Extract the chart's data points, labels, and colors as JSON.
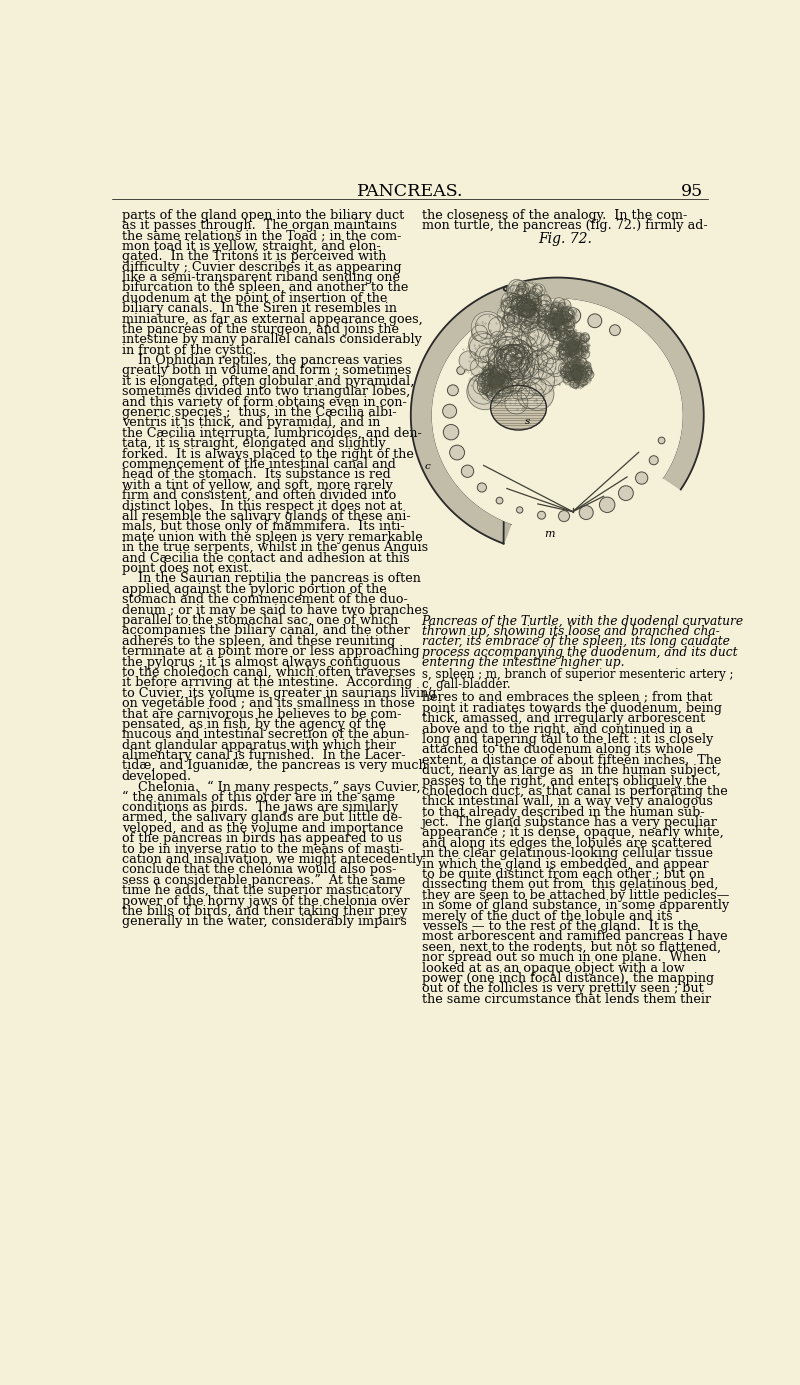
{
  "background_color": "#f5f0d8",
  "page_title": "PANCREAS.",
  "page_number": "95",
  "title_fontsize": 12.5,
  "body_fontsize": 9.2,
  "caption_fontsize": 8.8,
  "fig_label": "Fig. 72.",
  "fig_label_fontsize": 10,
  "caption_italic": "Pancreas of the Turtle, with the duodenal curvature\nthrown up, showing its loose and branched cha-\nracter, its embrace of the spleen, its long caudate\nprocess accompanying the duodenum, and its duct\nentering the intestine higher up.",
  "caption_normal_1": "s, spleen ; m, branch of superior mesenteric artery ;",
  "caption_normal_2": "c, gall-bladder.",
  "left_col_lines": [
    "parts of the gland open into the biliary duct",
    "as it passes through.  The organ maintains",
    "the same relations in the Toad ; in the com-",
    "mon toad it is yellow, straight, and elon-",
    "gated.  In the Tritons it is perceived with",
    "difficulty ; Cuvier describes it as appearing",
    "like a semi-transparent riband sending one",
    "bifurcation to the spleen, and another to the",
    "duodenum at the point of insertion of the",
    "biliary canals.  In the Siren it resembles in",
    "miniature, as far as external appearance goes,",
    "the pancreas of the sturgeon, and joins the",
    "intestine by many parallel canals considerably",
    "in front of the cystic.",
    "    In Ophidian reptiles, the pancreas varies",
    "greatly both in volume and form ; sometimes",
    "it is elongated, often globular and pyramidal,",
    "sometimes divided into two triangular lobes,",
    "and this variety of form obtains even in con-",
    "generic species ;  thus, in the Cæcilia albi-",
    "ventris it is thick, and pyramidal, and in",
    "the Cæcilia interrupta, lumbricóides, and den-",
    "tata, it is straight, elongated and slightly",
    "forked.  It is always placed to the right of the",
    "commencement of the intestinal canal and",
    "head of the stomach.  Its substance is red",
    "with a tint of yellow, and soft, more rarely",
    "firm and consistent, and often divided into",
    "distinct lobes.  In this respect it does not at",
    "all resemble the salivary glands of these ani-",
    "mals, but those only of mammifera.  Its inti-",
    "mate union with the spleen is very remarkable",
    "in the true serpents, whilst in the genus Anguis",
    "and Cæcilia the contact and adhesion at this",
    "point does not exist.",
    "    In the Saurian reptilia the pancreas is often",
    "applied against the pyloric portion of the",
    "stomach and the commencement of the duo-",
    "denum ; or it may be said to have two branches",
    "parallel to the stomachal sac, one of which",
    "accompanies the biliary canal, and the other",
    "adheres to the spleen, and these reuniting",
    "terminate at a point more or less approaching",
    "the pylorus ; it is almost always contiguous",
    "to the choledoch canal, which often traverses",
    "it before arriving at the intestine.  According",
    "to Cuvier, its volume is greater in saurians living",
    "on vegetable food ; and its smallness in those",
    "that are carnivorous he believes to be com-",
    "pensated, as in fish, by the agency of the",
    "mucous and intestinal secretion of the abun-",
    "dant glandular apparatus with which their",
    "alimentary canal is furnished.  In the Lacer-",
    "tidæ, and Iguanidæ, the pancreas is very much",
    "developed.",
    "    Chelonia.  “ In many respects,” says Cuvier,",
    "“ the animals of this order are in the same",
    "conditions as birds.  The jaws are similarly",
    "armed, the salivary glands are but little de-",
    "veloped, and as the volume and importance",
    "of the pancreas in birds has appeared to us",
    "to be in inverse ratio to the means of masti-",
    "cation and insalivation, we might antecedently",
    "conclude that the chelonia would also pos-",
    "sess a considerable pancreas.”  At the same",
    "time he adds, that the superior masticatory",
    "power of the horny jaws of the chelonia over",
    "the bills of birds, and their taking their prey",
    "generally in the water, considerably impairs"
  ],
  "right_col_top_lines": [
    "the closeness of the analogy.  In the com-",
    "mon turtle, the pancreas (fig. 72.) firmly ad-"
  ],
  "right_col_bottom_lines": [
    "heres to and embraces the spleen ; from that",
    "point it radiates towards the duodenum, being",
    "thick, amassed, and irregularly arborescent",
    "above and to the right, and continued in a",
    "long and tapering tail to the left : it is closely",
    "attached to the duodenum along its whole",
    "extent, a distance of about fifteen inches.  The",
    "duct, nearly as large as  in the human subject,",
    "passes to the right, and enters obliquely the",
    "choledoch duct, as that canal is perforating the",
    "thick intestinal wall, in a way very analogous",
    "to that already described in the human sub-",
    "ject.  The gland substance has a very peculiar",
    "appearance ; it is dense, opaque, nearly white,",
    "and along its edges the lobules are scattered",
    "in the clear gelatinous-looking cellular tissue",
    "in which the gland is embedded, and appear",
    "to be quite distinct from each other ; but on",
    "dissecting them out from  this gelatinous bed,",
    "they are seen to be attached by little pedicles—",
    "in some of gland substance, in some apparently",
    "merely of the duct of the lobule and its",
    "vessels — to the rest of the gland.  It is the",
    "most arborescent and ramified pancreas I have",
    "seen, next to the rodents, but not so flattened,",
    "nor spread out so much in one plane.  When",
    "looked at as an opaque object with a low",
    "power (one inch focal distance), the mapping",
    "out of the follicles is very prettily seen ; but",
    "the same circumstance that lends them their"
  ]
}
